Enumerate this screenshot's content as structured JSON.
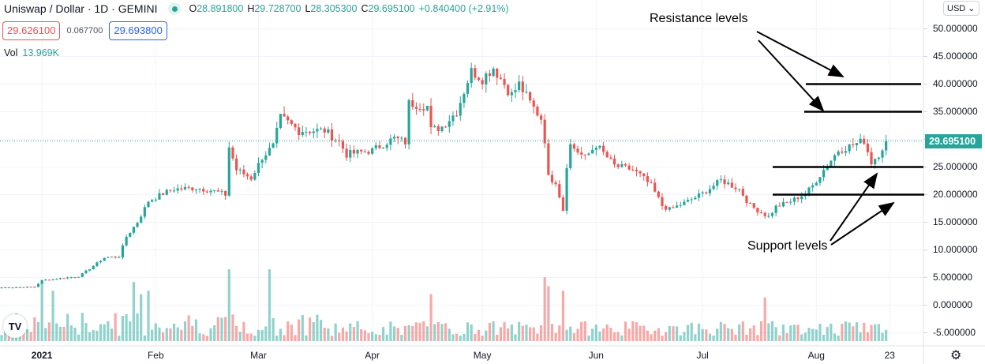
{
  "header": {
    "symbol": "Uniswap / Dollar · 1D · GEMINI",
    "o_label": "O",
    "o": "28.891800",
    "h_label": "H",
    "h": "29.728700",
    "l_label": "L",
    "l": "28.305300",
    "c_label": "C",
    "c": "29.695100",
    "change": "+0.840400 (+2.91%)"
  },
  "trade": {
    "sell": "29.626100",
    "spread": "0.067700",
    "buy": "29.693800"
  },
  "volume_legend": {
    "label": "Vol",
    "value": "13.969K"
  },
  "currency": "USD ⌄",
  "logo_text": "TV",
  "settings_icon": "gear-icon",
  "colors": {
    "up": "#26a69a",
    "down": "#ef5350",
    "grid": "#f0f3fa"
  },
  "chart_data": {
    "type": "candlestick",
    "title": "Uniswap / Dollar · 1D · GEMINI",
    "ylim": [
      -7,
      55
    ],
    "y_ticks": [
      "50.000000",
      "45.000000",
      "40.000000",
      "35.000000",
      "30.000000",
      "25.000000",
      "20.000000",
      "15.000000",
      "10.000000",
      "5.000000",
      "0.000000",
      "-5.000000"
    ],
    "y_tick_values": [
      50,
      45,
      40,
      35,
      30,
      25,
      20,
      15,
      10,
      5,
      0,
      -5
    ],
    "last_price": "29.695100",
    "last_price_value": 29.6951,
    "x_ticks": [
      {
        "label": "2021",
        "day": 11
      },
      {
        "label": "Feb",
        "day": 42
      },
      {
        "label": "Mar",
        "day": 70
      },
      {
        "label": "Apr",
        "day": 101
      },
      {
        "label": "May",
        "day": 131
      },
      {
        "label": "Jun",
        "day": 162
      },
      {
        "label": "Jul",
        "day": 191
      },
      {
        "label": "Aug",
        "day": 222
      },
      {
        "label": "23",
        "day": 242
      }
    ],
    "n_days": 242,
    "close_keypoints": [
      [
        0,
        3.2
      ],
      [
        9,
        3.3
      ],
      [
        11,
        4.5
      ],
      [
        21,
        5.2
      ],
      [
        24,
        6.6
      ],
      [
        28,
        8.6
      ],
      [
        32,
        8.8
      ],
      [
        34,
        12.4
      ],
      [
        37,
        15
      ],
      [
        40,
        18.8
      ],
      [
        44,
        20.2
      ],
      [
        47,
        21
      ],
      [
        53,
        21.2
      ],
      [
        57,
        20.8
      ],
      [
        61,
        20
      ],
      [
        62,
        28.6
      ],
      [
        64,
        24.5
      ],
      [
        68,
        23
      ],
      [
        71,
        26.7
      ],
      [
        74,
        28.8
      ],
      [
        76,
        34
      ],
      [
        81,
        31.6
      ],
      [
        88,
        31.6
      ],
      [
        92,
        29.5
      ],
      [
        94,
        27.3
      ],
      [
        101,
        28
      ],
      [
        105,
        29.5
      ],
      [
        107,
        30.2
      ],
      [
        110,
        29.5
      ],
      [
        111,
        36.6
      ],
      [
        116,
        36
      ],
      [
        117,
        31.6
      ],
      [
        120,
        32.3
      ],
      [
        124,
        35
      ],
      [
        128,
        42.4
      ],
      [
        131,
        41
      ],
      [
        134,
        43
      ],
      [
        136,
        41
      ],
      [
        139,
        38
      ],
      [
        141,
        40
      ],
      [
        144,
        36.6
      ],
      [
        147,
        33.8
      ],
      [
        148,
        30
      ],
      [
        149,
        23
      ],
      [
        151,
        22.4
      ],
      [
        153,
        17.3
      ],
      [
        154,
        25.2
      ],
      [
        155,
        29
      ],
      [
        159,
        26.6
      ],
      [
        162,
        29
      ],
      [
        164,
        27.5
      ],
      [
        167,
        25.2
      ],
      [
        172,
        24.5
      ],
      [
        174,
        23.5
      ],
      [
        177,
        21.6
      ],
      [
        180,
        18
      ],
      [
        182,
        17.3
      ],
      [
        187,
        18.8
      ],
      [
        191,
        20.2
      ],
      [
        196,
        22.6
      ],
      [
        201,
        21
      ],
      [
        204,
        18
      ],
      [
        209,
        16
      ],
      [
        211,
        17.8
      ],
      [
        215,
        18.8
      ],
      [
        219,
        20.2
      ],
      [
        221,
        21.6
      ],
      [
        224,
        24.5
      ],
      [
        228,
        28
      ],
      [
        232,
        29
      ],
      [
        235,
        29.8
      ],
      [
        237,
        25.9
      ],
      [
        239,
        27.3
      ],
      [
        241,
        29.7
      ]
    ],
    "volume_spikes": [
      [
        11,
        90
      ],
      [
        14,
        75
      ],
      [
        36,
        88
      ],
      [
        38,
        70
      ],
      [
        40,
        75
      ],
      [
        62,
        107
      ],
      [
        73,
        107
      ],
      [
        84,
        35
      ],
      [
        117,
        70
      ],
      [
        148,
        95
      ],
      [
        149,
        82
      ],
      [
        153,
        75
      ],
      [
        208,
        65
      ],
      [
        232,
        22
      ]
    ],
    "annotations": {
      "resistance_label": "Resistance levels",
      "support_label": "Support levels",
      "resistance_levels": [
        40,
        35
      ],
      "support_levels": [
        25,
        20
      ]
    }
  }
}
